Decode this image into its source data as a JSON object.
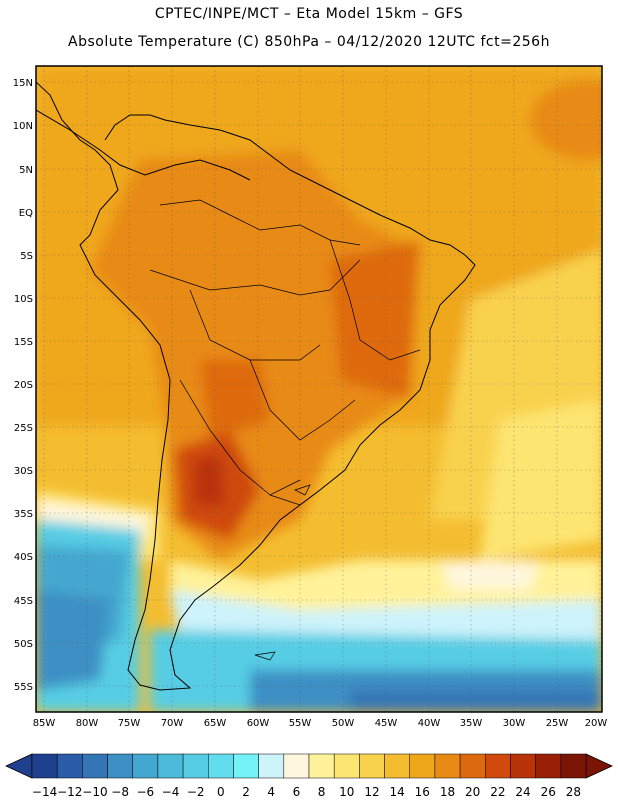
{
  "title": {
    "line1": "CPTEC/INPE/MCT –  Eta Model 15km – GFS",
    "line2": "Absolute Temperature (C) 850hPa – 04/12/2020 12UTC fct=256h"
  },
  "axes": {
    "lat_labels": [
      "15N",
      "10N",
      "5N",
      "EQ",
      "5S",
      "10S",
      "15S",
      "20S",
      "25S",
      "30S",
      "35S",
      "40S",
      "45S",
      "50S",
      "55S"
    ],
    "lon_labels": [
      "85W",
      "80W",
      "75W",
      "70W",
      "65W",
      "60W",
      "55W",
      "50W",
      "45W",
      "40W",
      "35W",
      "30W",
      "25W",
      "20W"
    ]
  },
  "colorbar": {
    "labels": [
      "-14",
      "-12",
      "-10",
      "-8",
      "-6",
      "-4",
      "-2",
      "0",
      "2",
      "4",
      "6",
      "8",
      "10",
      "12",
      "14",
      "16",
      "18",
      "20",
      "22",
      "24",
      "26",
      "28"
    ],
    "colors": [
      "#1f3f8f",
      "#2a5ca8",
      "#3476b5",
      "#3d8fc4",
      "#44a7cf",
      "#4bbbd9",
      "#56cde4",
      "#62ddee",
      "#74f2f7",
      "#cdf3fb",
      "#fff7dd",
      "#fff29a",
      "#fde572",
      "#f9d24e",
      "#f4bd30",
      "#efa71a",
      "#e88a14",
      "#de6a10",
      "#cf4a0c",
      "#b93308",
      "#992006",
      "#7a1404"
    ],
    "end_low": "#1f3f8f",
    "end_high": "#7a1404"
  }
}
